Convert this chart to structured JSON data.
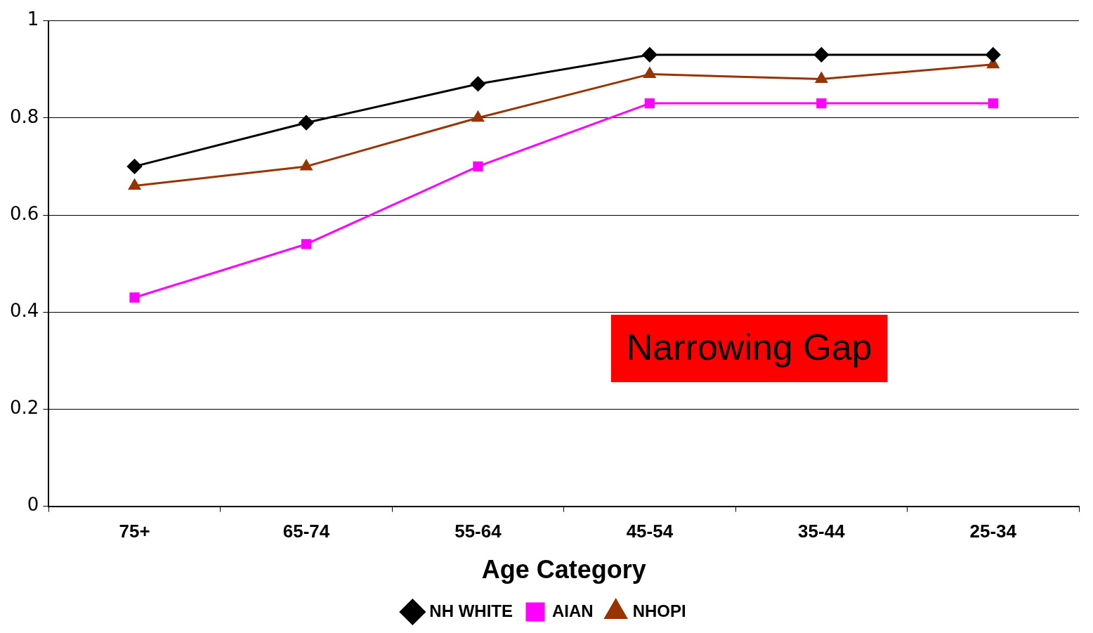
{
  "chart_data": {
    "type": "line",
    "xlabel": "Age Category",
    "categories": [
      "75+",
      "65-74",
      "55-64",
      "45-54",
      "35-44",
      "25-34"
    ],
    "series": [
      {
        "name": "NH WHITE",
        "color": "#000000",
        "marker": "diamond",
        "values": [
          0.7,
          0.79,
          0.87,
          0.93,
          0.93,
          0.93
        ]
      },
      {
        "name": "AIAN",
        "color": "#ff00ff",
        "marker": "square",
        "values": [
          0.43,
          0.54,
          0.7,
          0.83,
          0.83,
          0.83
        ]
      },
      {
        "name": "NHOPI",
        "color": "#993300",
        "marker": "triangle",
        "values": [
          0.66,
          0.7,
          0.8,
          0.89,
          0.88,
          0.91
        ]
      }
    ],
    "ylim": [
      0,
      1
    ],
    "yticks": [
      0,
      0.2,
      0.4,
      0.6,
      0.8,
      1
    ],
    "grid": "y",
    "legend": "bottom",
    "line_style": "solid",
    "annotations": [
      "Narrowing Gap"
    ]
  }
}
